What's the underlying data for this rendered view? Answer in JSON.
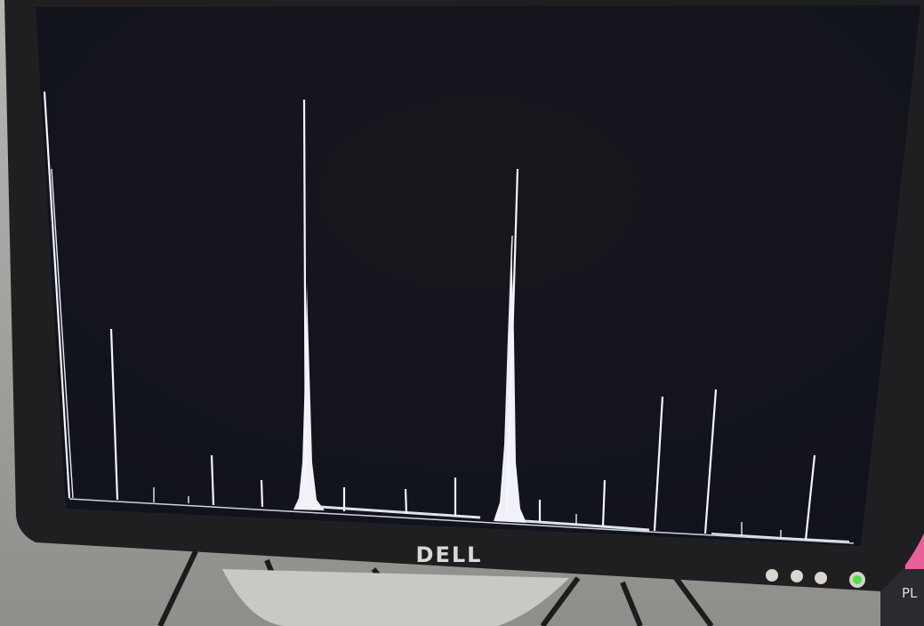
{
  "monitor": {
    "brand": "DELL"
  },
  "background": {
    "label": "PL"
  }
}
